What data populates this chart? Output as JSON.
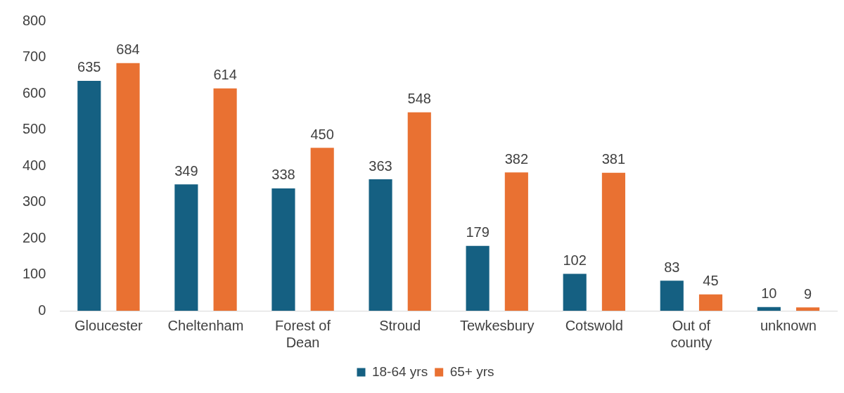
{
  "chart_data": {
    "type": "bar",
    "categories": [
      "Gloucester",
      "Cheltenham",
      "Forest of Dean",
      "Stroud",
      "Tewkesbury",
      "Cotswold",
      "Out of county",
      "unknown"
    ],
    "series": [
      {
        "name": "18-64 yrs",
        "color": "#156082",
        "values": [
          635,
          349,
          338,
          363,
          179,
          102,
          83,
          10
        ]
      },
      {
        "name": "65+ yrs",
        "color": "#e97132",
        "values": [
          684,
          614,
          450,
          548,
          382,
          381,
          45,
          9
        ]
      }
    ],
    "ylim": [
      0,
      800
    ],
    "yticks": [
      0,
      100,
      200,
      300,
      400,
      500,
      600,
      700,
      800
    ],
    "grid": false,
    "legend": "bottom",
    "data_labels": true
  }
}
